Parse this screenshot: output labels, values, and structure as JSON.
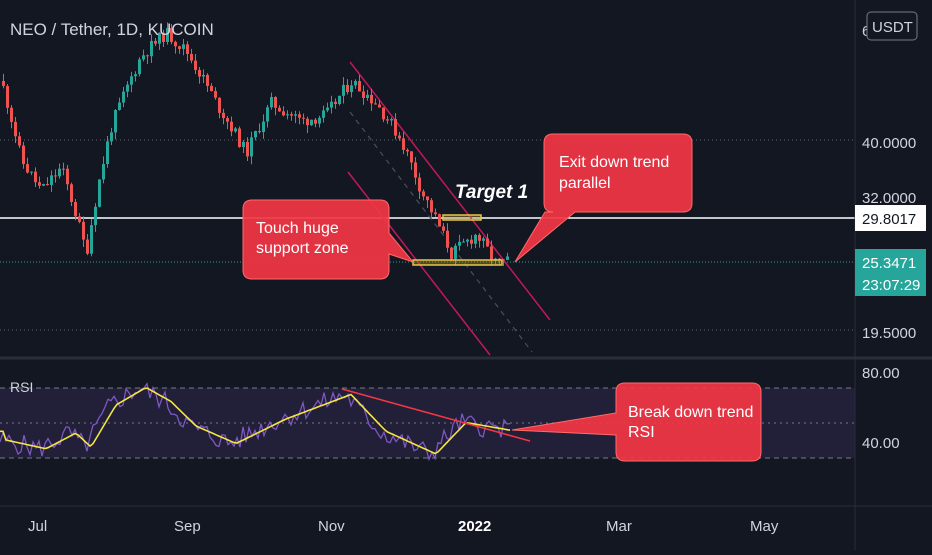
{
  "header": {
    "title": "NEO / Tether, 1D, KUCOIN",
    "currency_button": "USDT"
  },
  "colors": {
    "background": "#131722",
    "up": "#26a69a",
    "down": "#ef5350",
    "channel": "#c2185b",
    "annotation": "#f23645",
    "rsi_line": "#7e57c2",
    "rsi_ma": "#f5e642",
    "rsi_band": "#2a2540"
  },
  "price_axis": {
    "top_label_partial": "6",
    "labels": [
      "40.0000",
      "32.0000",
      "19.5000"
    ],
    "hline_value": "29.8017",
    "last_price": "25.3471",
    "countdown": "23:07:29"
  },
  "rsi": {
    "label": "RSI",
    "axis_labels": [
      "80.00",
      "40.00"
    ]
  },
  "time_axis": {
    "labels": [
      "Jul",
      "Sep",
      "Nov",
      "2022",
      "Mar",
      "May"
    ]
  },
  "annotations": {
    "target": "Target 1",
    "support": [
      "Touch huge",
      "support zone"
    ],
    "exit": [
      "Exit down trend",
      "parallel"
    ],
    "rsi_break": [
      "Break down trend",
      "RSI"
    ]
  },
  "chart_data": {
    "type": "candlestick",
    "symbol": "NEO / Tether",
    "interval": "1D",
    "exchange": "KUCOIN",
    "price_scale": "log",
    "price_levels": [
      40.0,
      32.0,
      29.8017,
      25.3471,
      19.5
    ],
    "horizontal_line": 29.8017,
    "last_price": 25.3471,
    "close_points": [
      {
        "x": "Jun",
        "close": 50.0
      },
      {
        "x": "late Jun",
        "close": 37.0
      },
      {
        "x": "early Jul",
        "close": 33.0
      },
      {
        "x": "mid Jul",
        "close": 36.0
      },
      {
        "x": "late Jul",
        "close": 26.0
      },
      {
        "x": "early Aug",
        "close": 42.0
      },
      {
        "x": "mid Aug",
        "close": 55.0
      },
      {
        "x": "late Aug",
        "close": 60.0
      },
      {
        "x": "early Sep",
        "close": 56.0
      },
      {
        "x": "mid Sep",
        "close": 46.0
      },
      {
        "x": "late Sep",
        "close": 38.0
      },
      {
        "x": "early Oct",
        "close": 46.0
      },
      {
        "x": "mid Oct",
        "close": 43.0
      },
      {
        "x": "late Oct",
        "close": 44.0
      },
      {
        "x": "early Nov",
        "close": 50.0
      },
      {
        "x": "mid Nov",
        "close": 46.0
      },
      {
        "x": "late Nov",
        "close": 40.0
      },
      {
        "x": "early Dec",
        "close": 33.0
      },
      {
        "x": "mid Dec",
        "close": 26.0
      },
      {
        "x": "late Dec",
        "close": 28.0
      },
      {
        "x": "early Jan",
        "close": 25.0
      },
      {
        "x": "2022",
        "close": 25.3471
      }
    ],
    "rsi": {
      "levels": [
        70,
        30
      ],
      "axis_labels": [
        80,
        40
      ],
      "points": [
        {
          "x": "Jun",
          "rsi": 40
        },
        {
          "x": "early Jul",
          "rsi": 35
        },
        {
          "x": "mid Jul",
          "rsi": 44
        },
        {
          "x": "late Jul",
          "rsi": 36
        },
        {
          "x": "early Aug",
          "rsi": 60
        },
        {
          "x": "mid Aug",
          "rsi": 70
        },
        {
          "x": "late Aug",
          "rsi": 62
        },
        {
          "x": "Sep",
          "rsi": 48
        },
        {
          "x": "late Sep",
          "rsi": 38
        },
        {
          "x": "mid Oct",
          "rsi": 52
        },
        {
          "x": "Nov",
          "rsi": 66
        },
        {
          "x": "mid Nov",
          "rsi": 45
        },
        {
          "x": "Dec",
          "rsi": 32
        },
        {
          "x": "mid Dec",
          "rsi": 50
        },
        {
          "x": "2022",
          "rsi": 45
        }
      ]
    }
  }
}
